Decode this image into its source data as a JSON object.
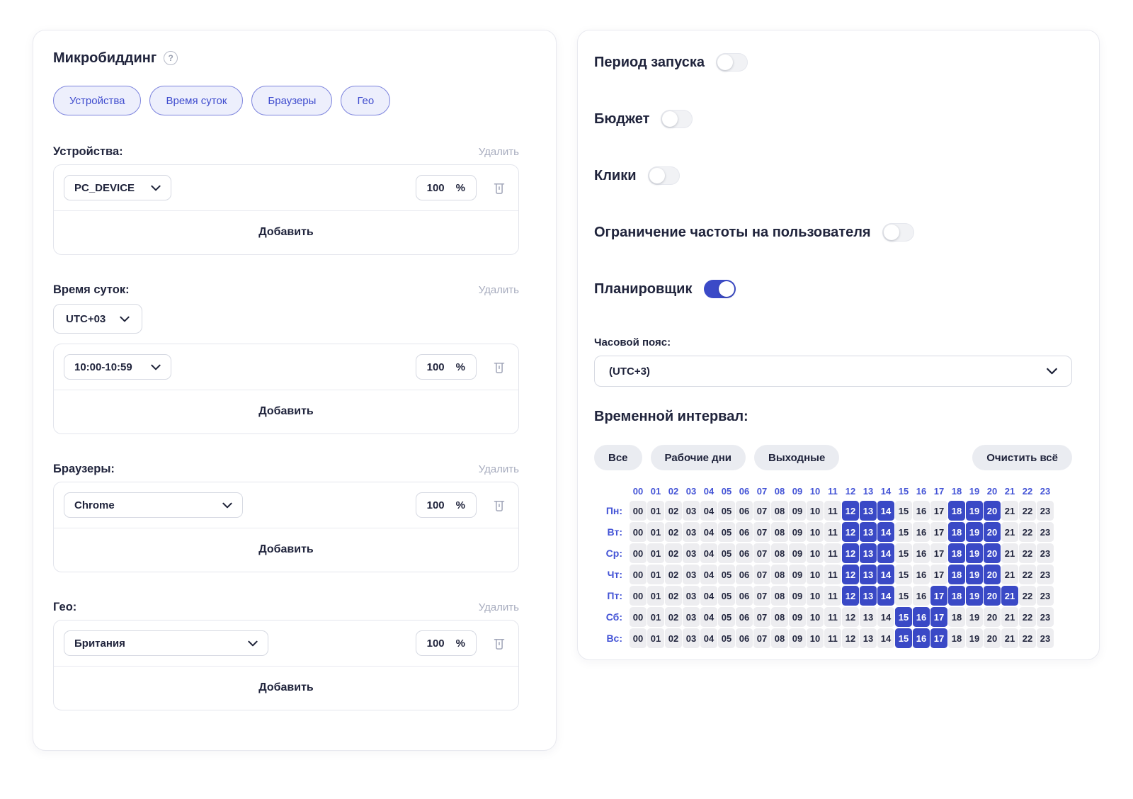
{
  "left_panel": {
    "title": "Микробиддинг",
    "help_icon": "?",
    "chips": [
      {
        "id": "devices",
        "label": "Устройства"
      },
      {
        "id": "time-of-day",
        "label": "Время суток"
      },
      {
        "id": "browsers",
        "label": "Браузеры"
      },
      {
        "id": "geo",
        "label": "Гео"
      }
    ],
    "delete_label": "Удалить",
    "add_label": "Добавить",
    "sections": [
      {
        "id": "devices",
        "label": "Устройства:",
        "value": "PC_DEVICE",
        "percent": "100",
        "percent_sign": "%"
      },
      {
        "id": "time-of-day",
        "label": "Время суток:",
        "timezone": "UTC+03",
        "value": "10:00-10:59",
        "percent": "100",
        "percent_sign": "%"
      },
      {
        "id": "browsers",
        "label": "Браузеры:",
        "value": "Chrome",
        "percent": "100",
        "percent_sign": "%"
      },
      {
        "id": "geo",
        "label": "Гео:",
        "value": "Британия",
        "percent": "100",
        "percent_sign": "%"
      }
    ]
  },
  "right_panel": {
    "toggles": [
      {
        "id": "launch-period",
        "label": "Период запуска",
        "on": false
      },
      {
        "id": "budget",
        "label": "Бюджет",
        "on": false
      },
      {
        "id": "clicks",
        "label": "Клики",
        "on": false
      },
      {
        "id": "frequency-cap",
        "label": "Ограничение частоты на пользователя",
        "on": false
      },
      {
        "id": "scheduler",
        "label": "Планировщик",
        "on": true
      }
    ],
    "timezone": {
      "label": "Часовой пояс:",
      "value": "(UTC+3)"
    },
    "interval": {
      "title": "Временной интервал:",
      "quick_buttons": [
        {
          "id": "all",
          "label": "Все"
        },
        {
          "id": "workdays",
          "label": "Рабочие дни"
        },
        {
          "id": "weekends",
          "label": "Выходные"
        }
      ],
      "clear_button": "Очистить всё",
      "hours": [
        "00",
        "01",
        "02",
        "03",
        "04",
        "05",
        "06",
        "07",
        "08",
        "09",
        "10",
        "11",
        "12",
        "13",
        "14",
        "15",
        "16",
        "17",
        "18",
        "19",
        "20",
        "21",
        "22",
        "23"
      ],
      "days": [
        {
          "id": "mon",
          "label": "Пн:",
          "selected_hours": [
            12,
            13,
            14,
            18,
            19,
            20
          ]
        },
        {
          "id": "tue",
          "label": "Вт:",
          "selected_hours": [
            12,
            13,
            14,
            18,
            19,
            20
          ]
        },
        {
          "id": "wed",
          "label": "Ср:",
          "selected_hours": [
            12,
            13,
            14,
            18,
            19,
            20
          ]
        },
        {
          "id": "thu",
          "label": "Чт:",
          "selected_hours": [
            12,
            13,
            14,
            18,
            19,
            20
          ]
        },
        {
          "id": "fri",
          "label": "Пт:",
          "selected_hours": [
            12,
            13,
            14,
            17,
            18,
            19,
            20,
            21
          ]
        },
        {
          "id": "sat",
          "label": "Сб:",
          "selected_hours": [
            15,
            16,
            17
          ]
        },
        {
          "id": "sun",
          "label": "Вс:",
          "selected_hours": [
            15,
            16,
            17
          ]
        }
      ]
    }
  },
  "icons": {
    "help": "question-circle-icon",
    "trash": "trash-icon",
    "chevron": "chevron-down-icon"
  },
  "colors": {
    "accent_blue": "#3b4ac7",
    "grid_blue": "#4353d6",
    "cell_selected": "#3a49c6",
    "cell_gray": "#ededf0",
    "text_dark": "#20243c",
    "muted_gray": "#a7acbe",
    "chip_bg": "#edeffc",
    "chip_border": "#7c83dd"
  }
}
